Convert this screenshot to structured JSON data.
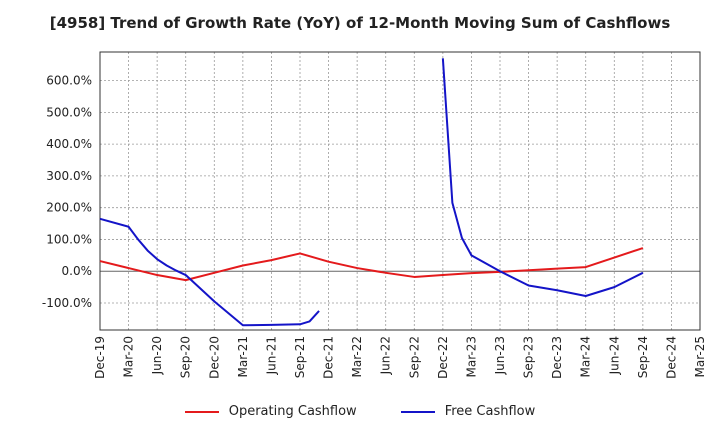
{
  "chart_data": {
    "type": "line",
    "title": "[4958]  Trend of Growth Rate (YoY) of 12-Month Moving Sum of Cashflows",
    "xlabel": "",
    "ylabel": "",
    "ylim": [
      -185,
      690
    ],
    "y_ticks": [
      -100,
      0,
      100,
      200,
      300,
      400,
      500,
      600
    ],
    "y_tick_labels": [
      "-100.0%",
      "0.0%",
      "100.0%",
      "200.0%",
      "300.0%",
      "400.0%",
      "500.0%",
      "600.0%"
    ],
    "x_ticks": [
      "Dec-19",
      "Mar-20",
      "Jun-20",
      "Sep-20",
      "Dec-20",
      "Mar-21",
      "Jun-21",
      "Sep-21",
      "Dec-21",
      "Mar-22",
      "Jun-22",
      "Sep-22",
      "Dec-22",
      "Mar-23",
      "Jun-23",
      "Sep-23",
      "Dec-23",
      "Mar-24",
      "Jun-24",
      "Sep-24",
      "Dec-24",
      "Mar-25"
    ],
    "grid": true,
    "legend_position": "bottom",
    "series": [
      {
        "name": "Operating Cashflow",
        "color": "#e41a1c",
        "points": [
          [
            "Dec-19",
            32
          ],
          [
            "Mar-20",
            10
          ],
          [
            "Jun-20",
            -12
          ],
          [
            "Sep-20",
            -28
          ],
          [
            "Dec-20",
            -5
          ],
          [
            "Mar-21",
            18
          ],
          [
            "Jun-21",
            35
          ],
          [
            "Sep-21",
            56
          ],
          [
            "Dec-21",
            30
          ],
          [
            "Mar-22",
            10
          ],
          [
            "Jun-22",
            -5
          ],
          [
            "Sep-22",
            -18
          ],
          [
            "Dec-22",
            -12
          ],
          [
            "Mar-23",
            -6
          ],
          [
            "Jun-23",
            -2
          ],
          [
            "Sep-23",
            3
          ],
          [
            "Dec-23",
            8
          ],
          [
            "Mar-24",
            13
          ],
          [
            "Jun-24",
            43
          ],
          [
            "Sep-24",
            73
          ]
        ]
      },
      {
        "name": "Free Cashflow",
        "color": "#1414c8",
        "segments": [
          [
            [
              "Dec-19",
              165
            ],
            [
              "Mar-20",
              140
            ],
            [
              "Apr-20",
              100
            ],
            [
              "May-20",
              65
            ],
            [
              "Jun-20",
              38
            ],
            [
              "Jul-20",
              18
            ],
            [
              "Aug-20",
              2
            ],
            [
              "Sep-20",
              -12
            ],
            [
              "Dec-20",
              -95
            ],
            [
              "Mar-21",
              -170
            ],
            [
              "Jun-21",
              -169
            ],
            [
              "Sep-21",
              -167
            ],
            [
              "Oct-21",
              -158
            ],
            [
              "Nov-21",
              -125
            ]
          ],
          [
            [
              "Dec-22",
              670
            ],
            [
              "Jan-23",
              215
            ],
            [
              "Feb-23",
              105
            ],
            [
              "Mar-23",
              50
            ],
            [
              "Jun-23",
              0
            ],
            [
              "Sep-23",
              -45
            ],
            [
              "Dec-23",
              -60
            ],
            [
              "Mar-24",
              -78
            ],
            [
              "Jun-24",
              -50
            ],
            [
              "Sep-24",
              -5
            ]
          ]
        ]
      }
    ]
  }
}
